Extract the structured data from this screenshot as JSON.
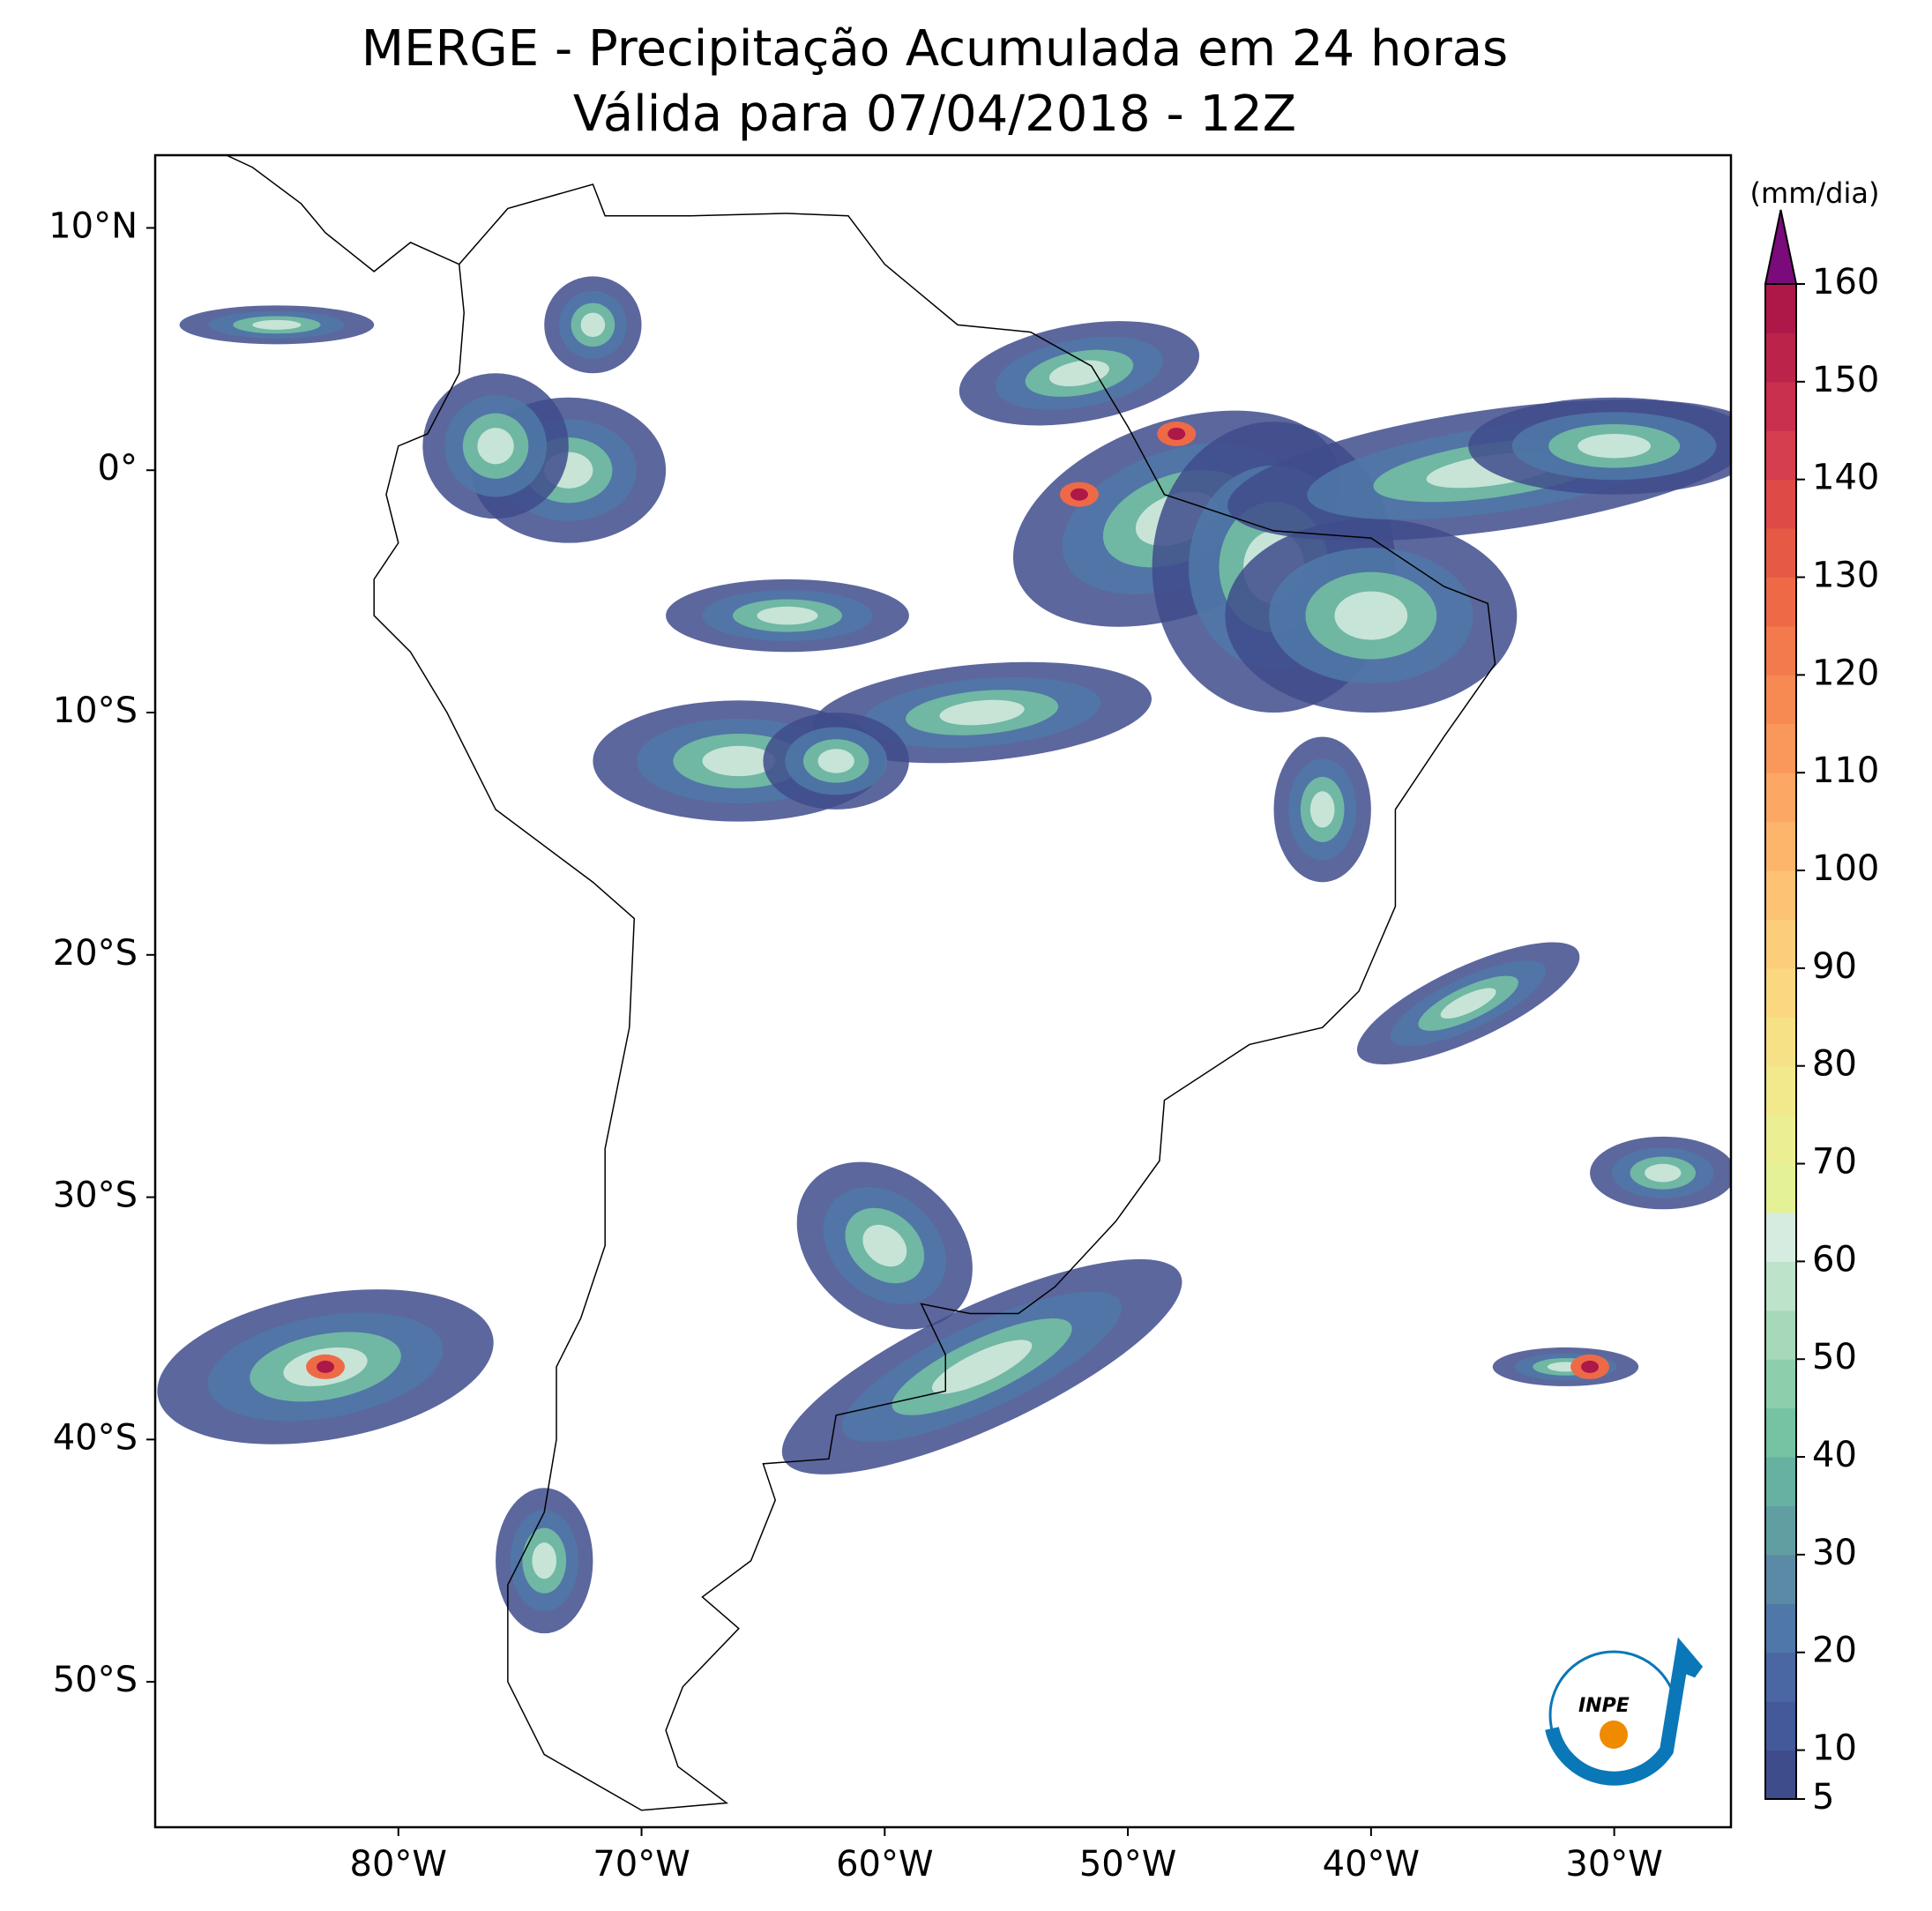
{
  "title": "MERGE - Precipitação Acumulada em 24 horas",
  "subtitle": "Válida para 07/04/2018 - 12Z",
  "map": {
    "xlim": [
      -90,
      -25.2
    ],
    "ylim": [
      -56,
      13
    ],
    "xticks": [
      {
        "value": -80,
        "label": "80°W"
      },
      {
        "value": -70,
        "label": "70°W"
      },
      {
        "value": -60,
        "label": "60°W"
      },
      {
        "value": -50,
        "label": "50°W"
      },
      {
        "value": -40,
        "label": "40°W"
      },
      {
        "value": -30,
        "label": "30°W"
      }
    ],
    "yticks": [
      {
        "value": 10,
        "label": "10°N"
      },
      {
        "value": 0,
        "label": "0°"
      },
      {
        "value": -10,
        "label": "10°S"
      },
      {
        "value": -20,
        "label": "20°S"
      },
      {
        "value": -30,
        "label": "30°S"
      },
      {
        "value": -40,
        "label": "40°S"
      },
      {
        "value": -50,
        "label": "50°S"
      }
    ]
  },
  "colorbar": {
    "unit": "(mm/dia)",
    "levels": [
      5,
      10,
      15,
      20,
      25,
      30,
      35,
      40,
      45,
      50,
      55,
      60,
      65,
      70,
      75,
      80,
      85,
      90,
      95,
      100,
      105,
      110,
      115,
      120,
      125,
      130,
      135,
      140,
      145,
      150,
      155,
      160
    ],
    "colors": [
      "#3f4c8c",
      "#43599a",
      "#4a67a3",
      "#4f78a8",
      "#5a8aa6",
      "#619ea2",
      "#67b1a0",
      "#75c3a3",
      "#8dcfad",
      "#a5d9ba",
      "#bde3ca",
      "#d6ece0",
      "#e4f196",
      "#ecee93",
      "#f2e88c",
      "#f7e186",
      "#fbd880",
      "#fdce7a",
      "#fdc274",
      "#fdb56b",
      "#fca763",
      "#fa985b",
      "#f78a53",
      "#f37a4c",
      "#ee6a47",
      "#e65a45",
      "#de4a46",
      "#d53e4f",
      "#c9304d",
      "#bc234a",
      "#ad1848"
    ],
    "over_color": "#7b0a7b",
    "ticks": [
      5,
      10,
      20,
      30,
      40,
      50,
      60,
      70,
      80,
      90,
      100,
      110,
      120,
      130,
      140,
      150,
      160
    ]
  },
  "logo": "INPE"
}
